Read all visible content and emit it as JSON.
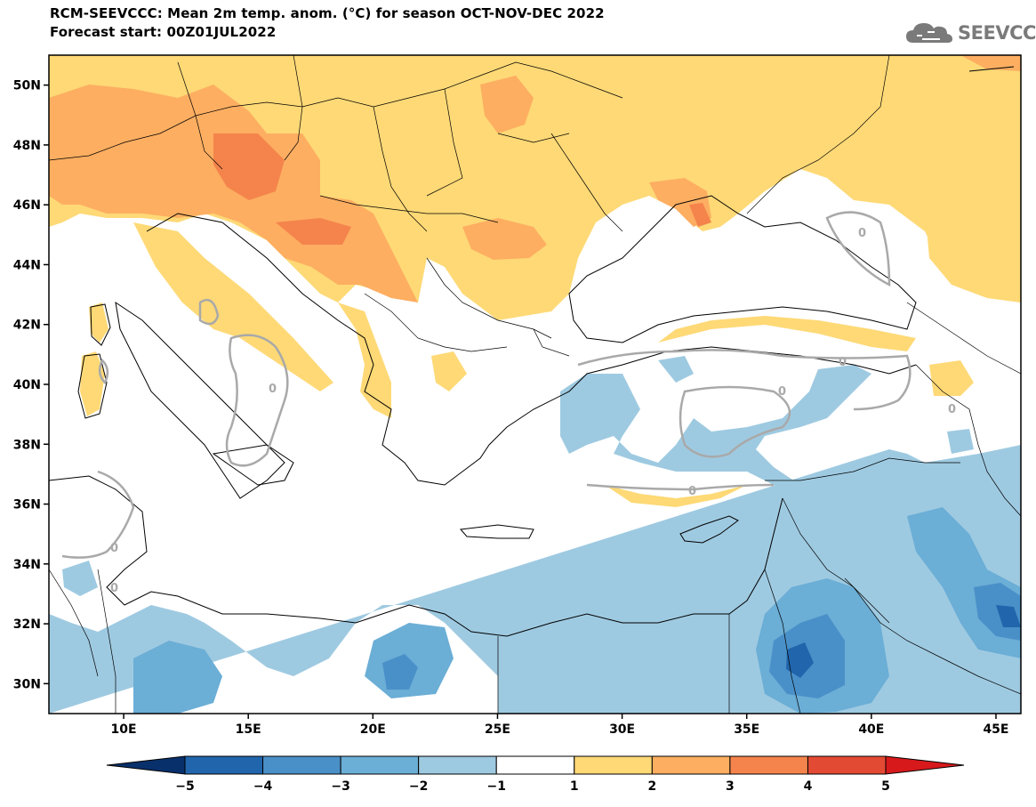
{
  "header": {
    "title_line1": "RCM-SEEVCCC: Mean 2m temp. anom. (°C) for season OCT-NOV-DEC 2022",
    "title_line2": "Forecast start: 00Z01JUL2022",
    "logo_text": "SEEVCCC"
  },
  "map": {
    "lon_range": [
      7,
      46
    ],
    "lat_range": [
      29,
      51
    ],
    "lon_ticks": [
      "10E",
      "15E",
      "20E",
      "25E",
      "30E",
      "35E",
      "40E",
      "45E"
    ],
    "lat_ticks": [
      "50N",
      "48N",
      "46N",
      "44N",
      "42N",
      "40N",
      "38N",
      "36N",
      "34N",
      "32N",
      "30N"
    ],
    "contour_label": "0"
  },
  "colorbar": {
    "levels": [
      "−5",
      "−4",
      "−3",
      "−2",
      "−1",
      "1",
      "2",
      "3",
      "4",
      "5"
    ],
    "colors": [
      "#08306b",
      "#2166ac",
      "#4a90c8",
      "#6baed6",
      "#9ecae1",
      "#ffffff",
      "#fed976",
      "#fdae61",
      "#f4844c",
      "#e34a33",
      "#d7191c"
    ]
  }
}
